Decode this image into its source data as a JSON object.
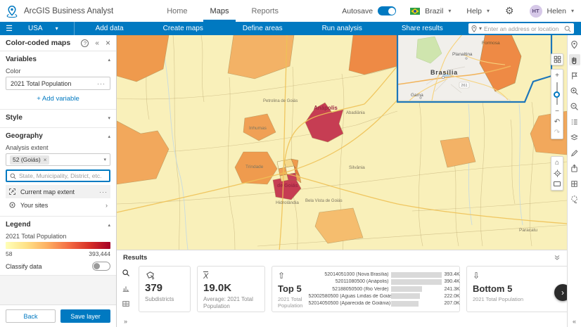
{
  "header": {
    "app_title": "ArcGIS Business Analyst",
    "nav": [
      {
        "label": "Home"
      },
      {
        "label": "Maps"
      },
      {
        "label": "Reports"
      }
    ],
    "autosave_label": "Autosave",
    "country": "Brazil",
    "help_label": "Help",
    "user_initials": "HT",
    "user_name": "Helen"
  },
  "toolbar": {
    "project": "USA",
    "items": [
      "Add data",
      "Create maps",
      "Define areas",
      "Run analysis",
      "Share results"
    ],
    "search_placeholder": "Enter an address or location"
  },
  "panel": {
    "title": "Color-coded maps",
    "variables_label": "Variables",
    "color_label": "Color",
    "variable_name": "2021 Total Population",
    "add_variable": "+ Add variable",
    "style_label": "Style",
    "geography_label": "Geography",
    "analysis_extent_label": "Analysis extent",
    "extent_value": "52 (Goiás)",
    "geo_search_placeholder": "State, Municipality, District, etc.",
    "current_map_extent": "Current map extent",
    "your_sites": "Your sites",
    "legend_label": "Legend",
    "legend_variable": "2021 Total Population",
    "legend_min": "58",
    "legend_max": "393,444",
    "classify_label": "Classify data",
    "back_label": "Back",
    "save_label": "Save layer"
  },
  "map": {
    "labels": [
      {
        "text": "Brasília"
      },
      {
        "text": "Planaltina"
      },
      {
        "text": "Gama"
      },
      {
        "text": "Formosa"
      },
      {
        "text": "Anápolis"
      },
      {
        "text": "Trindade"
      },
      {
        "text": "Inhumas"
      },
      {
        "text": "Petrolina de Goiás"
      },
      {
        "text": "Abadiânia"
      },
      {
        "text": "Silvânia"
      },
      {
        "text": "Hidrolândia"
      },
      {
        "text": "Bela Vista de Goiás"
      },
      {
        "text": "de Goiás"
      },
      {
        "text": "Paracatu"
      },
      {
        "text": "Unaí"
      }
    ],
    "road_shield": "261"
  },
  "results": {
    "title": "Results",
    "stats": [
      {
        "value": "379",
        "label": "Subdistricts"
      },
      {
        "value": "19.0K",
        "label": "Average: 2021 Total Population"
      }
    ],
    "top5": {
      "title": "Top 5",
      "subtitle": "2021 Total Population",
      "rows": [
        {
          "label": "52014051000 (Nova Brasília)",
          "value": "393.4K",
          "pct": 100
        },
        {
          "label": "52011080500 (Anápolis)",
          "value": "390.4K",
          "pct": 99
        },
        {
          "label": "52188050500 (Rio Verde)",
          "value": "241.3K",
          "pct": 61
        },
        {
          "label": "52002580500 (Águas Lindas de Goiás)",
          "value": "222.0K",
          "pct": 56
        },
        {
          "label": "52014050500 (Aparecida de Goiânia)",
          "value": "207.0K",
          "pct": 53
        }
      ]
    },
    "bottom5": {
      "title": "Bottom 5",
      "subtitle": "2021 Total Population",
      "partial_labels": [
        "52",
        "5207",
        "52",
        "52087070549 (U.T.F"
      ]
    }
  }
}
